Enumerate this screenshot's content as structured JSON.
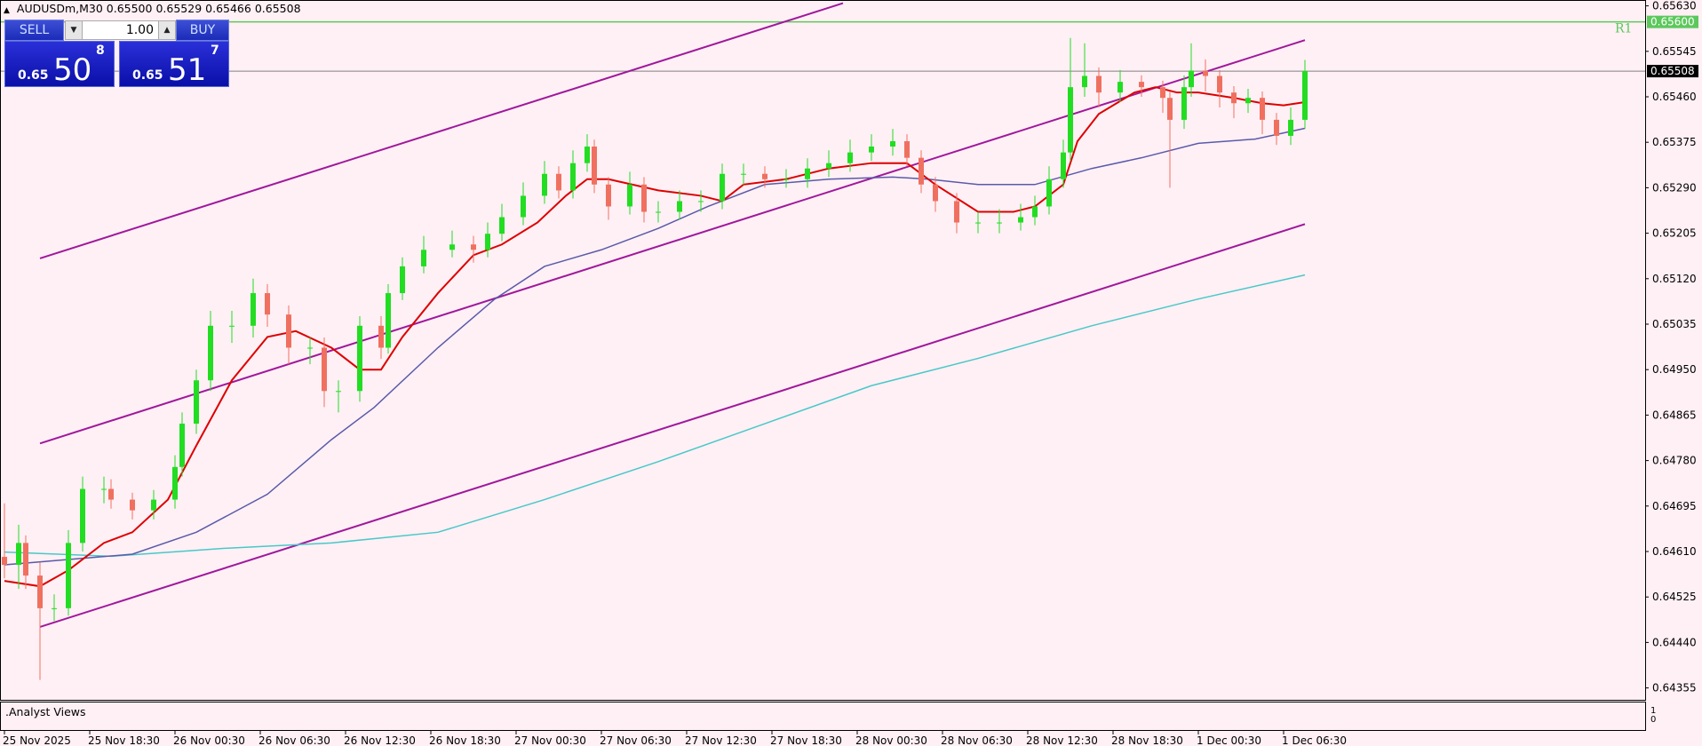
{
  "header": {
    "symbol": "AUDUSDm,M30",
    "open": "0.65500",
    "high": "0.65529",
    "low": "0.65466",
    "close": "0.65508"
  },
  "trade_panel": {
    "sell_label": "SELL",
    "buy_label": "BUY",
    "lot": "1.00",
    "sell_price": {
      "small": "0.65",
      "big": "50",
      "sup": "8"
    },
    "buy_price": {
      "small": "0.65",
      "big": "51",
      "sup": "7"
    }
  },
  "subwindow": {
    "label": ".Analyst Views",
    "scale": [
      "1",
      "0"
    ]
  },
  "colors": {
    "background": "#fff0f5",
    "bull": "#22dd22",
    "bear": "#f07060",
    "ma_fast": "#dd0000",
    "ma_mid": "#5a5aaa",
    "ma_slow": "#48c8c8",
    "channel": "#a0189c",
    "r1": "#5cc85c",
    "price_line": "#808080"
  },
  "chart_data": {
    "type": "candlestick",
    "yticks": [
      "0.65630",
      "0.65545",
      "0.65460",
      "0.65375",
      "0.65290",
      "0.65205",
      "0.65120",
      "0.65035",
      "0.64950",
      "0.64865",
      "0.64780",
      "0.64695",
      "0.64610",
      "0.64525",
      "0.64440",
      "0.64355"
    ],
    "xticks": [
      {
        "bar": 0,
        "label": "25 Nov 2025"
      },
      {
        "bar": 12,
        "label": "25 Nov 18:30"
      },
      {
        "bar": 24,
        "label": "26 Nov 00:30"
      },
      {
        "bar": 36,
        "label": "26 Nov 06:30"
      },
      {
        "bar": 48,
        "label": "26 Nov 12:30"
      },
      {
        "bar": 60,
        "label": "26 Nov 18:30"
      },
      {
        "bar": 72,
        "label": "27 Nov 00:30"
      },
      {
        "bar": 84,
        "label": "27 Nov 06:30"
      },
      {
        "bar": 96,
        "label": "27 Nov 12:30"
      },
      {
        "bar": 108,
        "label": "27 Nov 18:30"
      },
      {
        "bar": 120,
        "label": "28 Nov 00:30"
      },
      {
        "bar": 132,
        "label": "28 Nov 06:30"
      },
      {
        "bar": 144,
        "label": "28 Nov 12:30"
      },
      {
        "bar": 156,
        "label": "28 Nov 18:30"
      },
      {
        "bar": 168,
        "label": "1 Dec 00:30"
      },
      {
        "bar": 180,
        "label": "1 Dec 06:30"
      }
    ],
    "r1": {
      "label": "R1",
      "price": "0.65600"
    },
    "current_price": "0.65508",
    "candles_fields": [
      "bar",
      "open",
      "high",
      "low",
      "close"
    ],
    "candles": [
      [
        0,
        0.646,
        0.647,
        0.6456,
        0.64585
      ],
      [
        2,
        0.64585,
        0.6466,
        0.6454,
        0.64626
      ],
      [
        3,
        0.64626,
        0.6464,
        0.6454,
        0.64565
      ],
      [
        5,
        0.64565,
        0.6459,
        0.6437,
        0.64504
      ],
      [
        7,
        0.64504,
        0.6453,
        0.6448,
        0.64504
      ],
      [
        9,
        0.64504,
        0.6465,
        0.6449,
        0.64626
      ],
      [
        11,
        0.64626,
        0.6475,
        0.6461,
        0.64727
      ],
      [
        14,
        0.64727,
        0.6475,
        0.647,
        0.64727
      ],
      [
        15,
        0.64727,
        0.64745,
        0.6469,
        0.64707
      ],
      [
        18,
        0.64707,
        0.6472,
        0.6467,
        0.64687
      ],
      [
        21,
        0.64687,
        0.64725,
        0.6467,
        0.64707
      ],
      [
        24,
        0.64707,
        0.6479,
        0.6469,
        0.64768
      ],
      [
        25,
        0.64768,
        0.6487,
        0.6475,
        0.64849
      ],
      [
        27,
        0.64849,
        0.6495,
        0.6483,
        0.6493
      ],
      [
        29,
        0.6493,
        0.6506,
        0.6491,
        0.65032
      ],
      [
        32,
        0.65032,
        0.6506,
        0.65,
        0.65032
      ],
      [
        35,
        0.65032,
        0.6512,
        0.6501,
        0.65093
      ],
      [
        37,
        0.65093,
        0.6511,
        0.6503,
        0.65053
      ],
      [
        40,
        0.65053,
        0.6507,
        0.6496,
        0.64991
      ],
      [
        43,
        0.64991,
        0.6501,
        0.6496,
        0.64991
      ],
      [
        45,
        0.64991,
        0.6501,
        0.6488,
        0.6491
      ],
      [
        47,
        0.6491,
        0.6493,
        0.6487,
        0.6491
      ],
      [
        50,
        0.6491,
        0.6505,
        0.6489,
        0.65032
      ],
      [
        53,
        0.65032,
        0.6505,
        0.6497,
        0.64991
      ],
      [
        54,
        0.64991,
        0.6511,
        0.6498,
        0.65093
      ],
      [
        56,
        0.65093,
        0.6516,
        0.6508,
        0.65143
      ],
      [
        59,
        0.65143,
        0.652,
        0.6513,
        0.65174
      ],
      [
        63,
        0.65174,
        0.6521,
        0.6516,
        0.65184
      ],
      [
        66,
        0.65184,
        0.652,
        0.6515,
        0.65174
      ],
      [
        68,
        0.65174,
        0.65225,
        0.6516,
        0.65204
      ],
      [
        70,
        0.65204,
        0.6526,
        0.6519,
        0.65235
      ],
      [
        73,
        0.65235,
        0.653,
        0.6522,
        0.65275
      ],
      [
        76,
        0.65275,
        0.6534,
        0.6526,
        0.65316
      ],
      [
        78,
        0.65316,
        0.6533,
        0.6527,
        0.65285
      ],
      [
        80,
        0.65285,
        0.6536,
        0.6527,
        0.65336
      ],
      [
        82,
        0.65336,
        0.6539,
        0.6532,
        0.65367
      ],
      [
        83,
        0.65367,
        0.6538,
        0.6528,
        0.65296
      ],
      [
        85,
        0.65296,
        0.6531,
        0.6523,
        0.65255
      ],
      [
        88,
        0.65255,
        0.6532,
        0.6524,
        0.65296
      ],
      [
        90,
        0.65296,
        0.6531,
        0.65225,
        0.65245
      ],
      [
        92,
        0.65245,
        0.65265,
        0.65225,
        0.65245
      ],
      [
        95,
        0.65245,
        0.65285,
        0.6523,
        0.65265
      ],
      [
        98,
        0.65265,
        0.65285,
        0.65245,
        0.65265
      ],
      [
        101,
        0.65265,
        0.65335,
        0.6525,
        0.65316
      ],
      [
        104,
        0.65316,
        0.65335,
        0.65295,
        0.65316
      ],
      [
        107,
        0.65316,
        0.6533,
        0.6529,
        0.65306
      ],
      [
        110,
        0.65306,
        0.65325,
        0.6529,
        0.65306
      ],
      [
        113,
        0.65306,
        0.65345,
        0.6529,
        0.65326
      ],
      [
        116,
        0.65326,
        0.6536,
        0.6531,
        0.65336
      ],
      [
        119,
        0.65336,
        0.6538,
        0.6532,
        0.65356
      ],
      [
        122,
        0.65356,
        0.6539,
        0.6534,
        0.65367
      ],
      [
        125,
        0.65367,
        0.654,
        0.6535,
        0.65377
      ],
      [
        127,
        0.65377,
        0.6539,
        0.6533,
        0.65346
      ],
      [
        129,
        0.65346,
        0.6536,
        0.6528,
        0.65296
      ],
      [
        131,
        0.65296,
        0.6531,
        0.65245,
        0.65265
      ],
      [
        134,
        0.65265,
        0.6528,
        0.65205,
        0.65225
      ],
      [
        137,
        0.65225,
        0.65245,
        0.65205,
        0.65225
      ],
      [
        140,
        0.65225,
        0.6525,
        0.65205,
        0.65225
      ],
      [
        143,
        0.65225,
        0.6526,
        0.6521,
        0.65235
      ],
      [
        145,
        0.65235,
        0.65275,
        0.6522,
        0.65255
      ],
      [
        147,
        0.65255,
        0.6533,
        0.6524,
        0.65306
      ],
      [
        149,
        0.65306,
        0.6538,
        0.6529,
        0.65356
      ],
      [
        150,
        0.65356,
        0.6557,
        0.6534,
        0.65478
      ],
      [
        152,
        0.65478,
        0.6556,
        0.6546,
        0.65499
      ],
      [
        154,
        0.65499,
        0.65515,
        0.6544,
        0.65468
      ],
      [
        157,
        0.65468,
        0.6551,
        0.6545,
        0.65488
      ],
      [
        160,
        0.65488,
        0.655,
        0.6546,
        0.65478
      ],
      [
        163,
        0.65478,
        0.6549,
        0.6543,
        0.65458
      ],
      [
        164,
        0.65458,
        0.6547,
        0.6529,
        0.65417
      ],
      [
        166,
        0.65417,
        0.655,
        0.654,
        0.65478
      ],
      [
        167,
        0.65478,
        0.6556,
        0.6546,
        0.65509
      ],
      [
        169,
        0.65509,
        0.6553,
        0.6547,
        0.65499
      ],
      [
        171,
        0.65499,
        0.6551,
        0.6544,
        0.65468
      ],
      [
        173,
        0.65468,
        0.6548,
        0.6542,
        0.65448
      ],
      [
        175,
        0.65448,
        0.65475,
        0.6543,
        0.65458
      ],
      [
        177,
        0.65458,
        0.6547,
        0.6539,
        0.65417
      ],
      [
        179,
        0.65417,
        0.6543,
        0.6537,
        0.65387
      ],
      [
        181,
        0.65387,
        0.6544,
        0.6537,
        0.65417
      ],
      [
        183,
        0.65417,
        0.65529,
        0.654,
        0.65508
      ]
    ],
    "ma_fast": [
      [
        0,
        0.64555
      ],
      [
        5,
        0.64545
      ],
      [
        9,
        0.64575
      ],
      [
        14,
        0.64626
      ],
      [
        18,
        0.64646
      ],
      [
        23,
        0.64707
      ],
      [
        27,
        0.64808
      ],
      [
        32,
        0.6493
      ],
      [
        37,
        0.65011
      ],
      [
        41,
        0.65022
      ],
      [
        46,
        0.64991
      ],
      [
        50,
        0.6495
      ],
      [
        53,
        0.6495
      ],
      [
        56,
        0.65011
      ],
      [
        61,
        0.65093
      ],
      [
        66,
        0.65164
      ],
      [
        70,
        0.65184
      ],
      [
        75,
        0.65225
      ],
      [
        79,
        0.65275
      ],
      [
        82,
        0.65306
      ],
      [
        85,
        0.65306
      ],
      [
        92,
        0.65285
      ],
      [
        98,
        0.65275
      ],
      [
        101,
        0.65265
      ],
      [
        104,
        0.65296
      ],
      [
        110,
        0.65306
      ],
      [
        116,
        0.65326
      ],
      [
        122,
        0.65336
      ],
      [
        127,
        0.65336
      ],
      [
        131,
        0.65296
      ],
      [
        137,
        0.65245
      ],
      [
        142,
        0.65245
      ],
      [
        145,
        0.65255
      ],
      [
        149,
        0.65296
      ],
      [
        151,
        0.65377
      ],
      [
        154,
        0.65428
      ],
      [
        159,
        0.65468
      ],
      [
        162,
        0.65478
      ],
      [
        165,
        0.65468
      ],
      [
        168,
        0.65468
      ],
      [
        173,
        0.65458
      ],
      [
        177,
        0.65448
      ],
      [
        180,
        0.65444
      ],
      [
        183,
        0.6545
      ]
    ],
    "ma_mid": [
      [
        0,
        0.64585
      ],
      [
        9,
        0.64595
      ],
      [
        18,
        0.64605
      ],
      [
        27,
        0.64646
      ],
      [
        37,
        0.64717
      ],
      [
        46,
        0.64819
      ],
      [
        52,
        0.64879
      ],
      [
        61,
        0.64991
      ],
      [
        69,
        0.65082
      ],
      [
        76,
        0.65143
      ],
      [
        84,
        0.65174
      ],
      [
        92,
        0.65214
      ],
      [
        99,
        0.65255
      ],
      [
        107,
        0.65296
      ],
      [
        116,
        0.65306
      ],
      [
        125,
        0.6531
      ],
      [
        130,
        0.65306
      ],
      [
        137,
        0.65296
      ],
      [
        145,
        0.65296
      ],
      [
        153,
        0.65326
      ],
      [
        160,
        0.65346
      ],
      [
        168,
        0.65373
      ],
      [
        176,
        0.65381
      ],
      [
        183,
        0.65401
      ]
    ],
    "ma_slow": [
      [
        0,
        0.64609
      ],
      [
        15,
        0.64601
      ],
      [
        31,
        0.64616
      ],
      [
        46,
        0.64626
      ],
      [
        61,
        0.64646
      ],
      [
        76,
        0.64707
      ],
      [
        92,
        0.64778
      ],
      [
        107,
        0.64849
      ],
      [
        122,
        0.6492
      ],
      [
        137,
        0.64971
      ],
      [
        153,
        0.65032
      ],
      [
        168,
        0.65082
      ],
      [
        183,
        0.65127
      ]
    ],
    "channel_lines": [
      [
        [
          5,
          0.65158
        ],
        [
          118,
          0.65635
        ]
      ],
      [
        [
          5,
          0.64812
        ],
        [
          183,
          0.65566
        ]
      ],
      [
        [
          5,
          0.64469
        ],
        [
          183,
          0.65222
        ]
      ]
    ]
  }
}
